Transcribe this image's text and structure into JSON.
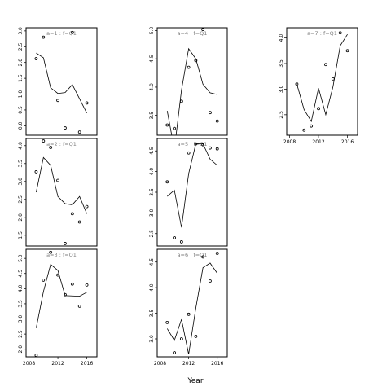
{
  "chart_data": {
    "type": "line",
    "xlabel": "Year",
    "ylabel": "",
    "x_ticks": [
      2008,
      2012,
      2016
    ],
    "legend": "none",
    "grid": false,
    "panels": [
      {
        "strip": "a=1 : f=Q1",
        "xlim": [
          2007.6,
          2017.4
        ],
        "ylim": [
          -0.3,
          3.1
        ],
        "y_ticks": [
          "0.0",
          "0.5",
          "1.0",
          "1.5",
          "2.0",
          "2.5",
          "3.0"
        ],
        "x_axis_labels": false,
        "fitted": {
          "x": [
            2009,
            2010,
            2011,
            2012,
            2013,
            2014,
            2015,
            2016
          ],
          "y": [
            2.3,
            2.15,
            1.2,
            1.02,
            1.05,
            1.3,
            0.85,
            0.4
          ]
        },
        "observed": {
          "x": [
            2009,
            2010,
            2012,
            2013,
            2014,
            2015,
            2016
          ],
          "y": [
            2.12,
            2.8,
            0.8,
            -0.07,
            2.95,
            -0.2,
            0.72
          ]
        }
      },
      {
        "strip": "a=2 : f=Q1",
        "xlim": [
          2007.6,
          2017.4
        ],
        "ylim": [
          1.2,
          4.2
        ],
        "y_ticks": [
          "1.5",
          "2.0",
          "2.5",
          "3.0",
          "3.5",
          "4.0"
        ],
        "x_axis_labels": false,
        "fitted": {
          "x": [
            2009,
            2010,
            2011,
            2012,
            2013,
            2014,
            2015,
            2016
          ],
          "y": [
            2.7,
            3.67,
            3.45,
            2.58,
            2.38,
            2.35,
            2.58,
            2.1
          ]
        },
        "observed": {
          "x": [
            2009,
            2010,
            2011,
            2012,
            2013,
            2014,
            2015,
            2016
          ],
          "y": [
            3.27,
            4.13,
            3.95,
            3.03,
            1.27,
            2.1,
            1.87,
            2.3
          ]
        }
      },
      {
        "strip": "a=3 : f=Q1",
        "xlim": [
          2007.6,
          2017.4
        ],
        "ylim": [
          1.75,
          5.3
        ],
        "y_ticks": [
          "2.0",
          "2.5",
          "3.0",
          "3.5",
          "4.0",
          "4.5",
          "5.0"
        ],
        "x_axis_labels": true,
        "fitted": {
          "x": [
            2009,
            2010,
            2011,
            2012,
            2013,
            2014,
            2015,
            2016
          ],
          "y": [
            2.7,
            3.9,
            4.8,
            4.6,
            3.77,
            3.76,
            3.75,
            3.88
          ]
        },
        "observed": {
          "x": [
            2009,
            2010,
            2011,
            2012,
            2013,
            2014,
            2015,
            2016
          ],
          "y": [
            1.8,
            4.28,
            5.2,
            4.45,
            3.8,
            4.15,
            3.42,
            4.12
          ]
        }
      },
      {
        "strip": "a=4 : f=Q1",
        "xlim": [
          2007.6,
          2017.4
        ],
        "ylim": [
          3.15,
          5.05
        ],
        "y_ticks": [
          "3.5",
          "4.0",
          "4.5",
          "5.0"
        ],
        "x_axis_labels": false,
        "fitted": {
          "x": [
            2009,
            2010,
            2011,
            2012,
            2013,
            2014,
            2015,
            2016
          ],
          "y": [
            3.58,
            2.9,
            3.95,
            4.68,
            4.5,
            4.05,
            3.9,
            3.87
          ]
        },
        "observed": {
          "x": [
            2009,
            2010,
            2011,
            2012,
            2013,
            2014,
            2015,
            2016
          ],
          "y": [
            3.33,
            3.27,
            3.75,
            4.35,
            4.47,
            5.02,
            3.55,
            3.4
          ]
        }
      },
      {
        "strip": "a=5 : f=Q1",
        "xlim": [
          2007.6,
          2017.4
        ],
        "ylim": [
          2.2,
          4.8
        ],
        "y_ticks": [
          "2.5",
          "3.0",
          "3.5",
          "4.0",
          "4.5"
        ],
        "x_axis_labels": false,
        "fitted": {
          "x": [
            2009,
            2010,
            2011,
            2012,
            2013,
            2014,
            2015,
            2016
          ],
          "y": [
            3.4,
            3.55,
            2.65,
            3.95,
            4.67,
            4.67,
            4.3,
            4.15
          ]
        },
        "observed": {
          "x": [
            2009,
            2010,
            2011,
            2012,
            2013,
            2014,
            2015,
            2016
          ],
          "y": [
            3.75,
            2.4,
            2.3,
            4.45,
            4.67,
            4.65,
            4.57,
            4.55
          ]
        }
      },
      {
        "strip": "a=6 : f=Q1",
        "xlim": [
          2007.6,
          2017.4
        ],
        "ylim": [
          2.65,
          4.75
        ],
        "y_ticks": [
          "3.0",
          "3.5",
          "4.0",
          "4.5"
        ],
        "x_axis_labels": true,
        "fitted": {
          "x": [
            2009,
            2010,
            2011,
            2012,
            2013,
            2014,
            2015,
            2016
          ],
          "y": [
            3.2,
            2.97,
            3.38,
            2.7,
            3.6,
            4.39,
            4.48,
            4.28
          ]
        },
        "observed": {
          "x": [
            2009,
            2010,
            2011,
            2012,
            2013,
            2014,
            2015,
            2016
          ],
          "y": [
            3.32,
            2.73,
            3.0,
            3.48,
            3.05,
            4.6,
            4.13,
            4.67
          ]
        }
      },
      {
        "strip": "a=7 : f=Q1",
        "xlim": [
          2007.6,
          2017.4
        ],
        "ylim": [
          2.1,
          4.2
        ],
        "y_ticks": [
          "2.5",
          "3.0",
          "3.5",
          "4.0"
        ],
        "x_axis_labels": true,
        "fitted": {
          "x": [
            2009,
            2010,
            2011,
            2012,
            2013,
            2014,
            2015,
            2016
          ],
          "y": [
            3.1,
            2.6,
            2.37,
            3.02,
            2.5,
            3.05,
            3.85,
            4.07
          ]
        },
        "observed": {
          "x": [
            2009,
            2010,
            2011,
            2012,
            2013,
            2014,
            2015,
            2016
          ],
          "y": [
            3.1,
            2.2,
            2.28,
            2.62,
            3.48,
            3.2,
            4.1,
            3.75
          ]
        }
      }
    ]
  }
}
